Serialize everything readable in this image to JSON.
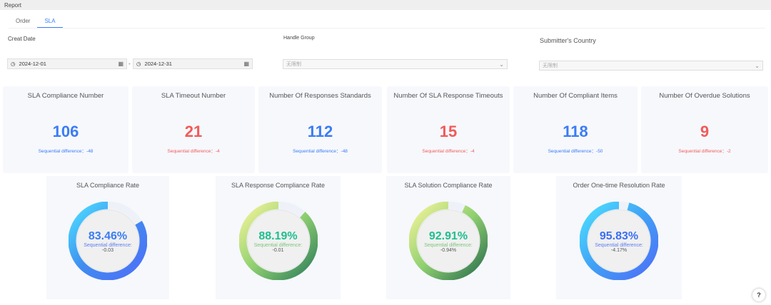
{
  "header": {
    "title": "Report"
  },
  "tabs": [
    {
      "label": "Order"
    },
    {
      "label": "SLA"
    }
  ],
  "filters": {
    "creat_date_label": "Creat Date",
    "start_date": "2024-12-01",
    "end_date": "2024-12-31",
    "separator": "-",
    "handle_group_label": "Handle Group",
    "handle_group_value": "无限制",
    "country_label": "Submitter's Country",
    "country_value": "无限制"
  },
  "stats": [
    {
      "title": "SLA Compliance Number",
      "value": "106",
      "diff_label": "Sequential difference：",
      "diff": "-48",
      "color": "blue"
    },
    {
      "title": "SLA Timeout Number",
      "value": "21",
      "diff_label": "Sequential difference：",
      "diff": "-4",
      "color": "red"
    },
    {
      "title": "Number Of Responses Standards",
      "value": "112",
      "diff_label": "Sequential difference：",
      "diff": "-48",
      "color": "blue"
    },
    {
      "title": "Number Of SLA Response Timeouts",
      "value": "15",
      "diff_label": "Sequential difference：",
      "diff": "-4",
      "color": "red"
    },
    {
      "title": "Number Of Compliant Items",
      "value": "118",
      "diff_label": "Sequential difference：",
      "diff": "-50",
      "color": "blue"
    },
    {
      "title": "Number Of Overdue Solutions",
      "value": "9",
      "diff_label": "Sequential difference：",
      "diff": "-2",
      "color": "red"
    }
  ],
  "gauges": [
    {
      "title": "SLA Compliance Rate",
      "value": "83.46%",
      "percent": 83.46,
      "diff_label": "Sequential difference:",
      "diff": "-0.03",
      "colors": [
        "#4de0ff",
        "#3f8cf0",
        "#4f6ef7"
      ],
      "text_color": "#3b7cf5",
      "label_color": "#5b7cf5"
    },
    {
      "title": "SLA Response Compliance Rate",
      "value": "88.19%",
      "percent": 88.19,
      "diff_label": "Sequential difference:",
      "diff": "-0.01",
      "colors": [
        "#f6f49a",
        "#8fd070",
        "#2e7d5b"
      ],
      "text_color": "#1fbf8f",
      "label_color": "#7cc47a"
    },
    {
      "title": "SLA Solution Compliance Rate",
      "value": "92.91%",
      "percent": 92.91,
      "diff_label": "Sequential difference:",
      "diff": "-0.94%",
      "colors": [
        "#f6f49a",
        "#8fd070",
        "#2a6e4e"
      ],
      "text_color": "#1fbf8f",
      "label_color": "#7cc47a"
    },
    {
      "title": "Order One-time Resolution Rate",
      "value": "95.83%",
      "percent": 95.83,
      "diff_label": "Sequential difference:",
      "diff": "-4.17%",
      "colors": [
        "#4de0ff",
        "#40a0f5",
        "#4f6ef7"
      ],
      "text_color": "#3b6ff5",
      "label_color": "#5b7cf5"
    }
  ],
  "help_label": "?"
}
